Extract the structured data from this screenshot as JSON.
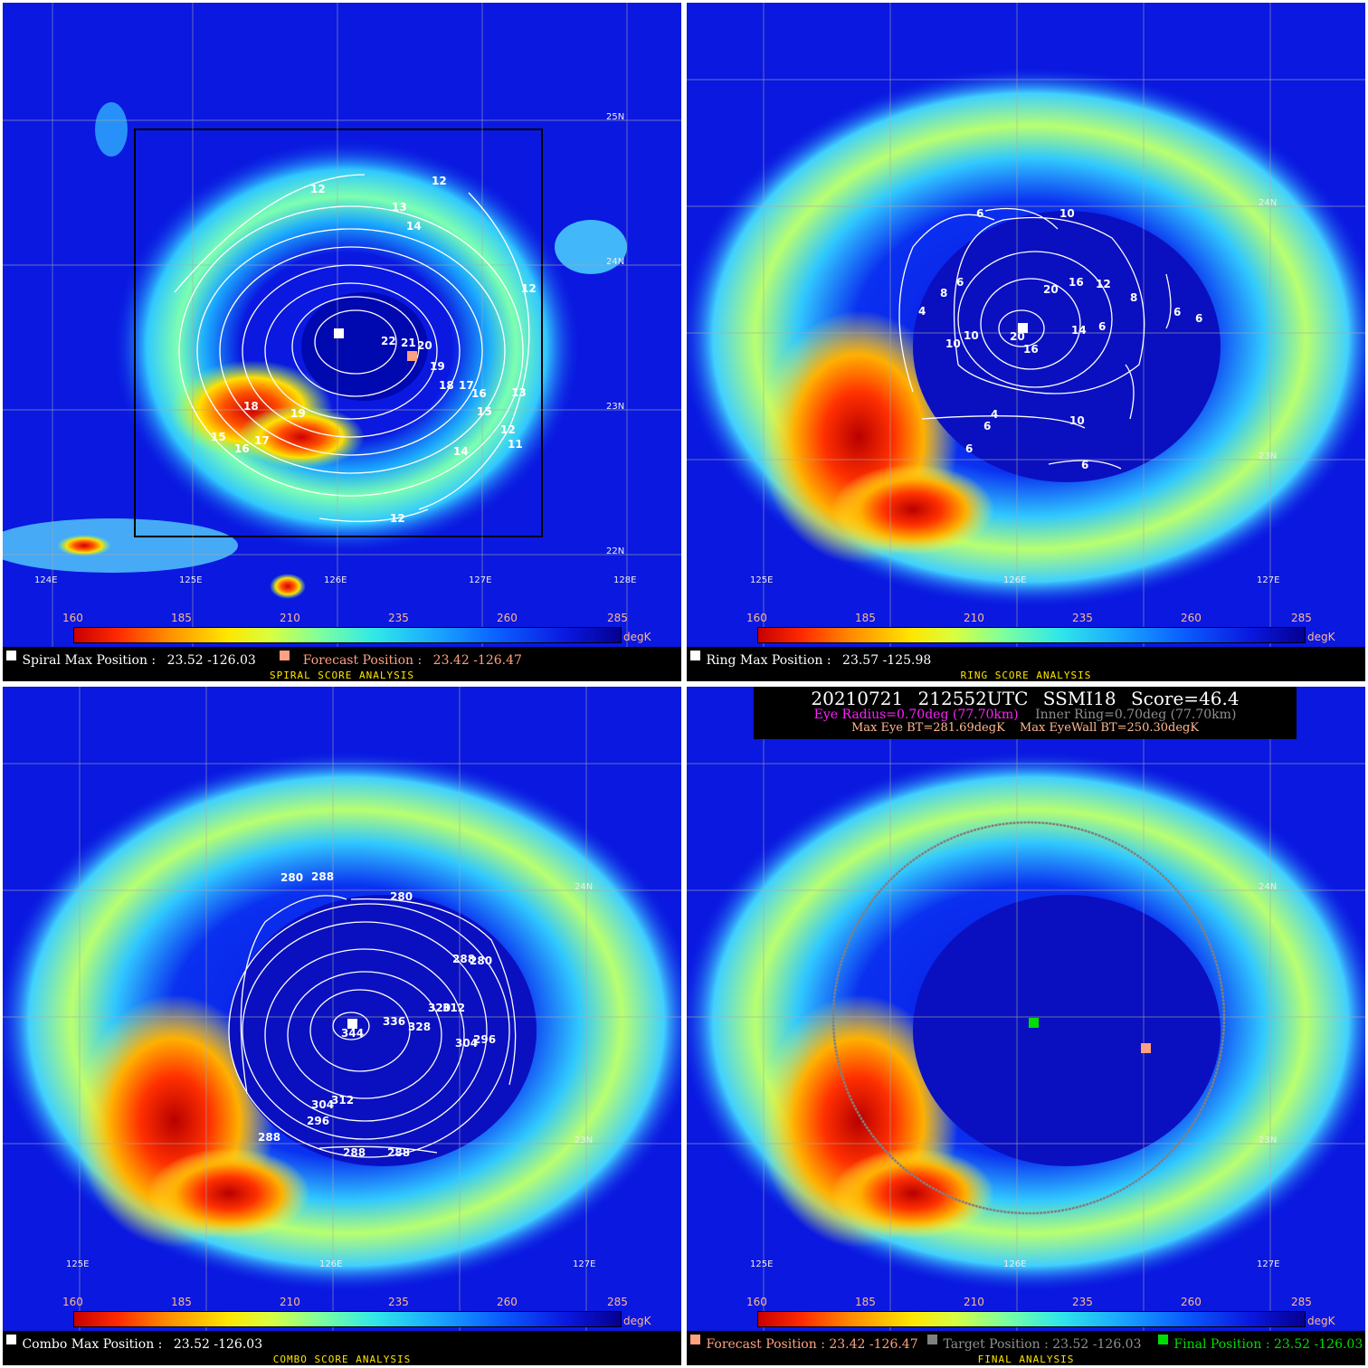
{
  "colorbar": {
    "ticks": [
      "160",
      "185",
      "210",
      "235",
      "260",
      "285"
    ],
    "unit": "degK"
  },
  "spiral": {
    "lat_labels": [
      "25N",
      "24N",
      "23N",
      "22N"
    ],
    "lon_labels": [
      "124E",
      "125E",
      "126E",
      "127E",
      "128E"
    ],
    "contour_labels": [
      "12",
      "12",
      "13",
      "14",
      "12",
      "22",
      "21",
      "20",
      "19",
      "18",
      "17",
      "16",
      "13",
      "15",
      "12",
      "11",
      "14",
      "12",
      "18",
      "19",
      "15",
      "17",
      "16"
    ],
    "max_label": "Spiral Max Position :",
    "max_value": "23.52 -126.03",
    "forecast_label": "Forecast Position :",
    "forecast_value": "23.42 -126.47",
    "title": "SPIRAL SCORE ANALYSIS"
  },
  "ring": {
    "lat_labels": [
      "24N",
      "23N"
    ],
    "lon_labels": [
      "125E",
      "126E",
      "127E"
    ],
    "contour_labels": [
      "6",
      "10",
      "6",
      "8",
      "20",
      "16",
      "12",
      "8",
      "6",
      "6",
      "4",
      "10",
      "10",
      "20",
      "16",
      "14",
      "6",
      "4",
      "6",
      "10",
      "6",
      "6"
    ],
    "max_label": "Ring Max Position :",
    "max_value": "23.57 -125.98",
    "title": "RING SCORE ANALYSIS"
  },
  "combo": {
    "lat_labels": [
      "24N",
      "23N"
    ],
    "lon_labels": [
      "125E",
      "126E",
      "127E"
    ],
    "contour_labels": [
      "280",
      "288",
      "280",
      "288",
      "280",
      "344",
      "336",
      "328",
      "320",
      "312",
      "304",
      "296",
      "304",
      "312",
      "296",
      "288",
      "288",
      "288"
    ],
    "max_label": "Combo Max Position :",
    "max_value": "23.52 -126.03",
    "title": "COMBO SCORE ANALYSIS"
  },
  "final": {
    "header_line1": "20210721  212552UTC     SSMI18     Score=46.4",
    "eye_radius": "Eye Radius=0.70deg (77.70km)",
    "inner_ring": "Inner Ring=0.70deg (77.70km)",
    "max_eye_bt": "Max Eye BT=281.69degK",
    "max_eyewall_bt": "Max EyeWall BT=250.30degK",
    "lat_labels": [
      "24N",
      "23N"
    ],
    "lon_labels": [
      "125E",
      "126E",
      "127E"
    ],
    "forecast_label": "Forecast Position : 23.42 -126.47",
    "target_label": "Target Position : 23.52 -126.03",
    "final_label": "Final Position : 23.52 -126.03",
    "title": "FINAL ANALYSIS"
  },
  "colors": {
    "forecast": "#ffa080",
    "target": "#808080",
    "final": "#00dd00",
    "eye_text": "#ff20ff",
    "ring_text": "#909090",
    "subtitle": "#ffe600"
  }
}
